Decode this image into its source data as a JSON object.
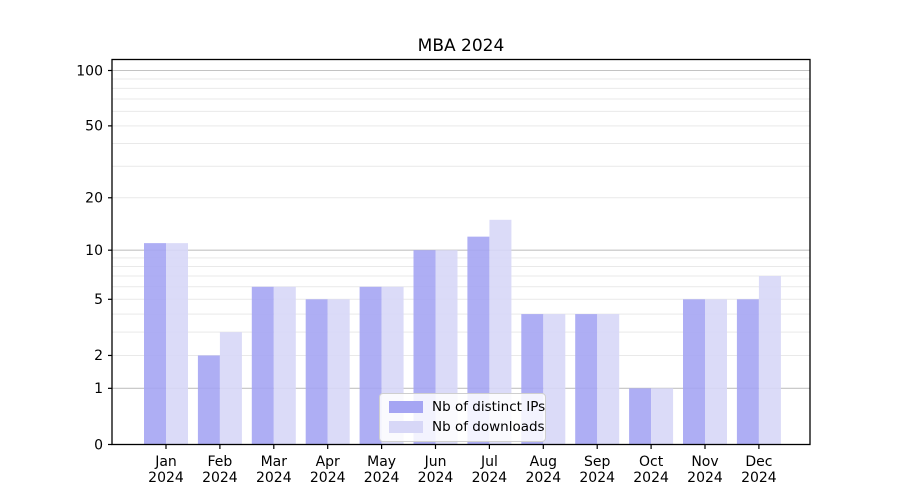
{
  "chart_data": {
    "type": "bar",
    "title": "MBA 2024",
    "x": {
      "categories": [
        "Jan",
        "Feb",
        "Mar",
        "Apr",
        "May",
        "Jun",
        "Jul",
        "Aug",
        "Sep",
        "Oct",
        "Nov",
        "Dec"
      ],
      "year_suffix": "2024"
    },
    "y_axis": {
      "scale": "log1p",
      "tick_labels": [
        "100",
        "50",
        "20",
        "10",
        "5",
        "2",
        "1",
        "0"
      ],
      "tick_values": [
        100,
        50,
        20,
        10,
        5,
        2,
        1,
        0
      ],
      "range_top": 114,
      "major_gridlines": [
        1,
        10,
        100
      ],
      "minor_gridlines": [
        2,
        3,
        4,
        5,
        6,
        7,
        8,
        9,
        20,
        30,
        40,
        50,
        60,
        70,
        80,
        90
      ]
    },
    "series": [
      {
        "name": "Nb of distinct IPs",
        "color": "#a5a5f3",
        "values": [
          11,
          2,
          6,
          5,
          6,
          10,
          12,
          4,
          4,
          1,
          5,
          5
        ]
      },
      {
        "name": "Nb of downloads",
        "color": "#d7d7f7",
        "values": [
          11,
          3,
          6,
          5,
          6,
          10,
          15,
          4,
          4,
          1,
          5,
          7
        ]
      }
    ],
    "legend": {
      "position": "lower center"
    },
    "grid": "on"
  },
  "colors": {
    "major_grid": "#c3c3c3",
    "minor_grid": "#e9e9e9",
    "axis": "#000000",
    "text": "#000000",
    "background": "#ffffff"
  }
}
